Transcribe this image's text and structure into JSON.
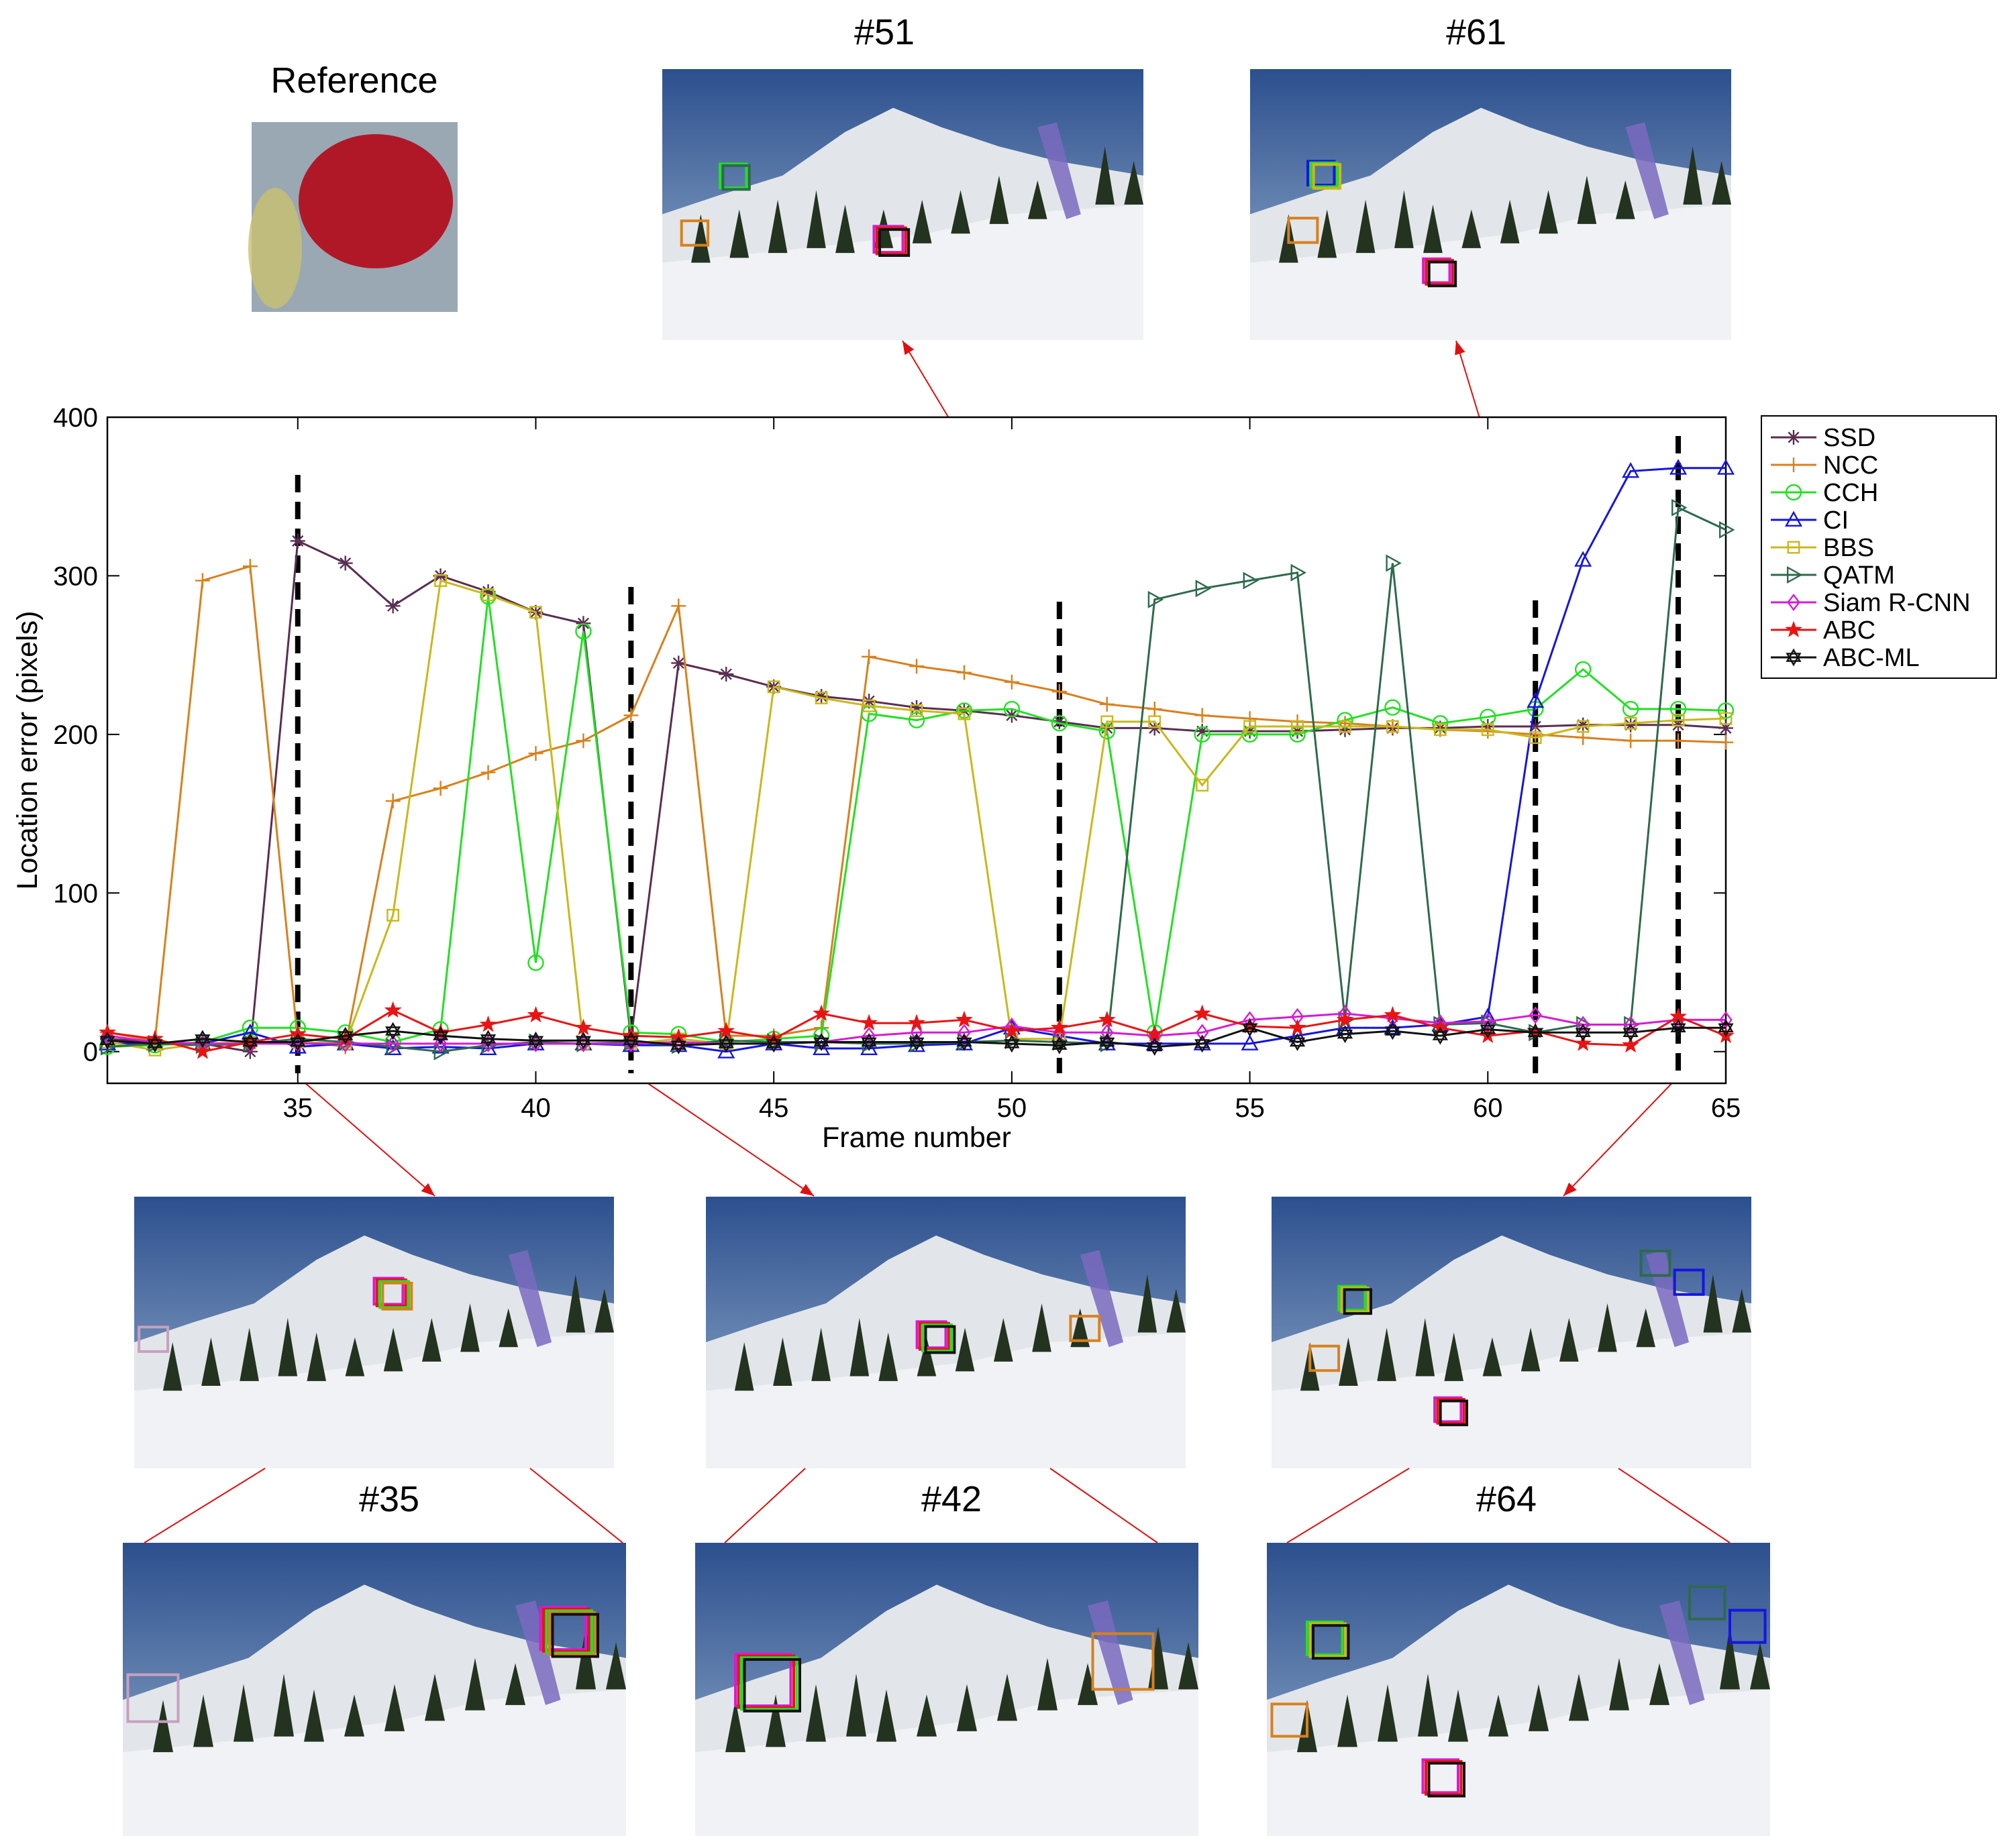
{
  "figure": {
    "reference_label": "Reference",
    "frame_labels": [
      "#51",
      "#61",
      "#35",
      "#42",
      "#64"
    ]
  },
  "colors": {
    "marker_line": "#e01010",
    "sky_top": "#2c4f8e",
    "sky_bottom": "#9bb4cf",
    "snow": "#f0f2f5",
    "mountain": "#e2e6ea",
    "tree": "#23331f",
    "banner": "#7a6ac0",
    "reference_bg": "#9aa8b4",
    "reference_target": "#b01828",
    "reference_yellow": "#c8c070"
  },
  "chart_data": {
    "type": "line",
    "xlabel": "Frame number",
    "ylabel": "Location error (pixels)",
    "xlim": [
      31,
      65
    ],
    "ylim": [
      -20,
      400
    ],
    "xticks": [
      35,
      40,
      45,
      50,
      55,
      60,
      65
    ],
    "yticks": [
      0,
      100,
      200,
      300,
      400
    ],
    "grid": false,
    "legend_position": "outside-right",
    "markers_at_frames": [
      35,
      42,
      51,
      61,
      64
    ],
    "x": [
      31,
      32,
      33,
      34,
      35,
      36,
      37,
      38,
      39,
      40,
      41,
      42,
      43,
      44,
      45,
      46,
      47,
      48,
      49,
      50,
      51,
      52,
      53,
      54,
      55,
      56,
      57,
      58,
      59,
      60,
      61,
      62,
      63,
      64,
      65
    ],
    "series": [
      {
        "name": "SSD",
        "color": "#5a2d52",
        "marker": "asterisk",
        "values": [
          8,
          6,
          5,
          0,
          322,
          308,
          281,
          300,
          290,
          277,
          270,
          8,
          245,
          238,
          230,
          224,
          221,
          217,
          215,
          212,
          208,
          204,
          204,
          202,
          202,
          202,
          203,
          204,
          204,
          205,
          205,
          206,
          206,
          206,
          204
        ]
      },
      {
        "name": "NCC",
        "color": "#d9801c",
        "marker": "plus",
        "values": [
          12,
          7,
          297,
          306,
          7,
          3,
          158,
          166,
          176,
          188,
          196,
          212,
          281,
          10,
          10,
          15,
          249,
          243,
          239,
          233,
          227,
          219,
          216,
          212,
          210,
          208,
          207,
          205,
          203,
          202,
          200,
          198,
          196,
          196,
          195
        ]
      },
      {
        "name": "CCH",
        "color": "#22e022",
        "marker": "circle",
        "values": [
          3,
          4,
          6,
          15,
          15,
          12,
          6,
          14,
          287,
          56,
          265,
          12,
          11,
          6,
          8,
          10,
          213,
          209,
          215,
          216,
          207,
          202,
          12,
          200,
          200,
          200,
          209,
          217,
          207,
          211,
          216,
          241,
          216,
          216,
          215
        ]
      },
      {
        "name": "CI",
        "color": "#1515e0",
        "marker": "triangle-up",
        "values": [
          5,
          5,
          5,
          12,
          3,
          5,
          2,
          3,
          2,
          5,
          5,
          4,
          4,
          0,
          5,
          2,
          2,
          4,
          5,
          15,
          10,
          5,
          5,
          5,
          5,
          10,
          15,
          15,
          17,
          22,
          221,
          310,
          366,
          368,
          368
        ]
      },
      {
        "name": "BBS",
        "color": "#c9b81b",
        "marker": "square",
        "values": [
          6,
          1,
          5,
          6,
          6,
          5,
          86,
          297,
          288,
          277,
          5,
          5,
          8,
          5,
          230,
          223,
          218,
          215,
          213,
          8,
          8,
          208,
          208,
          168,
          205,
          205,
          205,
          205,
          203,
          203,
          198,
          205,
          207,
          209,
          210
        ]
      },
      {
        "name": "QATM",
        "color": "#2e6a4c",
        "marker": "triangle-right",
        "values": [
          3,
          5,
          4,
          5,
          8,
          6,
          3,
          0,
          4,
          6,
          5,
          6,
          4,
          7,
          6,
          6,
          5,
          5,
          6,
          7,
          6,
          5,
          285,
          292,
          297,
          302,
          20,
          308,
          17,
          18,
          12,
          17,
          17,
          343,
          329
        ]
      },
      {
        "name": "Siam R-CNN",
        "color": "#d41cd4",
        "marker": "diamond",
        "values": [
          10,
          6,
          5,
          5,
          5,
          5,
          5,
          5,
          5,
          5,
          5,
          5,
          6,
          5,
          5,
          6,
          10,
          12,
          12,
          16,
          12,
          12,
          10,
          12,
          20,
          22,
          24,
          21,
          18,
          19,
          23,
          17,
          17,
          20,
          20
        ]
      },
      {
        "name": "ABC",
        "color": "#e81414",
        "marker": "star",
        "values": [
          12,
          8,
          0,
          6,
          11,
          8,
          26,
          12,
          17,
          23,
          15,
          10,
          9,
          13,
          8,
          24,
          18,
          18,
          20,
          13,
          15,
          20,
          11,
          24,
          16,
          15,
          20,
          23,
          15,
          10,
          13,
          5,
          4,
          22,
          10
        ]
      },
      {
        "name": "ABC-ML",
        "color": "#111111",
        "marker": "hexagram",
        "values": [
          7,
          5,
          8,
          6,
          6,
          10,
          13,
          10,
          8,
          7,
          7,
          7,
          4,
          5,
          5,
          6,
          6,
          6,
          6,
          5,
          4,
          6,
          3,
          5,
          15,
          6,
          11,
          13,
          10,
          14,
          12,
          12,
          12,
          15,
          15
        ]
      }
    ]
  }
}
